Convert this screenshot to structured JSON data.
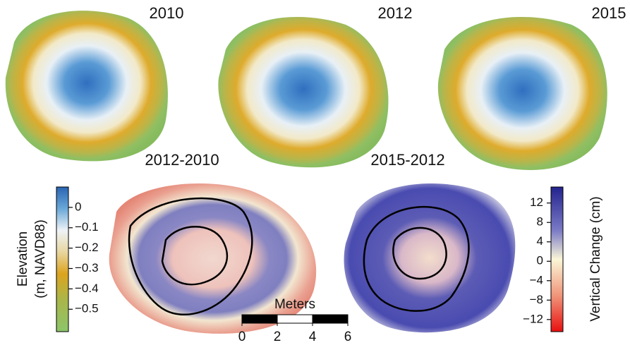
{
  "panels": [
    {
      "title": "2010"
    },
    {
      "title": "2012"
    },
    {
      "title": "2015"
    },
    {
      "title": "2012-2010"
    },
    {
      "title": "2015-2012"
    }
  ],
  "elevation_colorbar": {
    "label_lines": [
      "Elevation",
      "(m, NAVD88)"
    ],
    "lim": [
      -0.61,
      0.1
    ],
    "ticks": [
      0,
      {
        "value": -0.1,
        "label": "−0.1"
      },
      {
        "value": -0.2,
        "label": "−0.2"
      },
      {
        "value": -0.3,
        "label": "−0.3"
      },
      {
        "value": -0.4,
        "label": "−0.4"
      },
      {
        "value": -0.5,
        "label": "−0.5"
      }
    ]
  },
  "change_colorbar": {
    "label": "Vertical Change (cm)",
    "lim": [
      -14.5,
      15.3
    ],
    "ticks": [
      12,
      8,
      4,
      0,
      {
        "value": -4,
        "label": "−4"
      },
      {
        "value": -8,
        "label": "−8"
      },
      {
        "value": -12,
        "label": "−12"
      }
    ]
  },
  "scale_bar": {
    "label": "Meters",
    "lim": [
      0,
      6
    ],
    "ticks": [
      0,
      2,
      4,
      6
    ]
  }
}
